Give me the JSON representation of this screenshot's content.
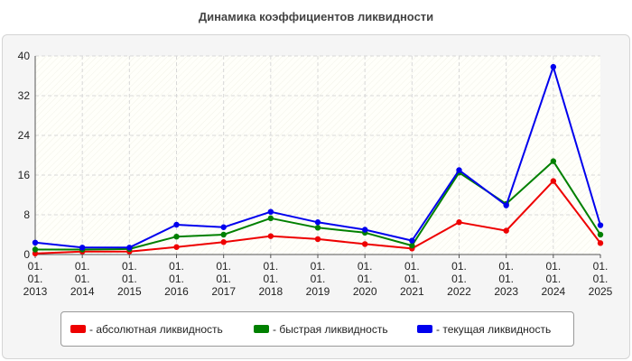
{
  "chart_data": {
    "type": "line",
    "title": "Динамика коэффициентов ликвидности",
    "x_tick_labels": [
      [
        "01.",
        "01.",
        "2013"
      ],
      [
        "01.",
        "01.",
        "2014"
      ],
      [
        "01.",
        "01.",
        "2015"
      ],
      [
        "01.",
        "01.",
        "2016"
      ],
      [
        "01.",
        "01.",
        "2017"
      ],
      [
        "01.",
        "01.",
        "2018"
      ],
      [
        "01.",
        "01.",
        "2019"
      ],
      [
        "01.",
        "01.",
        "2020"
      ],
      [
        "01.",
        "01.",
        "2021"
      ],
      [
        "01.",
        "01.",
        "2022"
      ],
      [
        "01.",
        "01.",
        "2023"
      ],
      [
        "01.",
        "01.",
        "2024"
      ],
      [
        "01.",
        "01.",
        "2025"
      ]
    ],
    "ylim": [
      0,
      40
    ],
    "y_ticks": [
      0,
      8,
      16,
      24,
      32,
      40
    ],
    "grid": true,
    "legend_position": "bottom",
    "series": [
      {
        "name": "- абсолютная ликвидность",
        "color": "#ee0000",
        "values": [
          0.2,
          0.6,
          0.6,
          1.5,
          2.5,
          3.7,
          3.1,
          2.1,
          1.2,
          6.5,
          4.8,
          14.8,
          2.3
        ]
      },
      {
        "name": "- быстрая ликвидность",
        "color": "#008000",
        "values": [
          1.0,
          1.0,
          1.1,
          3.6,
          4.0,
          7.3,
          5.4,
          4.4,
          1.8,
          16.5,
          10.2,
          18.8,
          4.0
        ]
      },
      {
        "name": "- текущая ликвидность",
        "color": "#0000ee",
        "values": [
          2.4,
          1.4,
          1.4,
          6.0,
          5.5,
          8.6,
          6.5,
          5.0,
          2.8,
          17.0,
          9.9,
          37.8,
          5.9
        ]
      }
    ]
  }
}
